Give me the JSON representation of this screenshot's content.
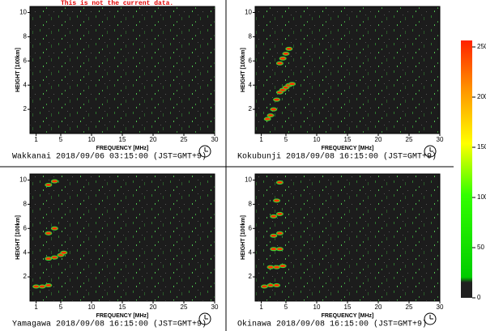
{
  "notice": "This is not the current data.",
  "colorbar": {
    "lim": [
      0,
      250
    ],
    "ticks": [
      0,
      50,
      100,
      150,
      200,
      250
    ]
  },
  "chart_data": [
    {
      "type": "scatter",
      "station": "Wakkanai 2018/09/06 03:15:00 (JST=GMT+9)",
      "x_label": "FREQUENCY [MHz]",
      "y_label": "HEIGHT [100km]",
      "xlim": [
        0,
        30
      ],
      "ylim": [
        0,
        10.5
      ],
      "xticks": [
        1,
        5,
        10,
        15,
        20,
        25,
        30
      ],
      "yticks": [
        2,
        4,
        6,
        8,
        10
      ],
      "series": []
    },
    {
      "type": "scatter",
      "station": "Kokubunji 2018/09/08 16:15:00 (JST=GMT+9)",
      "x_label": "FREQUENCY [MHz]",
      "y_label": "HEIGHT [100km]",
      "xlim": [
        0,
        30
      ],
      "ylim": [
        0,
        10.5
      ],
      "xticks": [
        1,
        5,
        10,
        15,
        20,
        25,
        30
      ],
      "yticks": [
        2,
        4,
        6,
        8,
        10
      ],
      "series": [
        {
          "color": "#ff3300",
          "x": [
            2,
            2.5,
            3,
            3.5,
            4,
            4.5,
            5,
            5.5,
            6,
            4,
            4.5,
            5,
            5.5
          ],
          "values": [
            1.2,
            1.5,
            2,
            2.8,
            3.4,
            3.6,
            3.8,
            4.0,
            4.1,
            5.8,
            6.2,
            6.6,
            7.0
          ]
        }
      ]
    },
    {
      "type": "scatter",
      "station": "Yamagawa 2018/09/08 16:15:00 (JST=GMT+9)",
      "x_label": "FREQUENCY [MHz]",
      "y_label": "HEIGHT [100km]",
      "xlim": [
        0,
        30
      ],
      "ylim": [
        0,
        10.5
      ],
      "xticks": [
        1,
        5,
        10,
        15,
        20,
        25,
        30
      ],
      "yticks": [
        2,
        4,
        6,
        8,
        10
      ],
      "series": [
        {
          "color": "#ff3300",
          "x": [
            1,
            2,
            3,
            3,
            4,
            5,
            5.5,
            3,
            4,
            3,
            4
          ],
          "values": [
            1.2,
            1.2,
            1.3,
            3.5,
            3.6,
            3.8,
            4.0,
            5.6,
            6.0,
            9.6,
            9.9
          ]
        }
      ]
    },
    {
      "type": "scatter",
      "station": "Okinawa 2018/09/08 16:15:00 (JST=GMT+9)",
      "x_label": "FREQUENCY [MHz]",
      "y_label": "HEIGHT [100km]",
      "xlim": [
        0,
        30
      ],
      "ylim": [
        0,
        10.5
      ],
      "xticks": [
        1,
        5,
        10,
        15,
        20,
        25,
        30
      ],
      "yticks": [
        2,
        4,
        6,
        8,
        10
      ],
      "series": [
        {
          "color": "#ff3300",
          "x": [
            1.5,
            2.5,
            3.5,
            2.5,
            3.5,
            4.5,
            3,
            4,
            3,
            4,
            3,
            4,
            3.5,
            4
          ],
          "values": [
            1.2,
            1.3,
            1.3,
            2.8,
            2.8,
            2.9,
            4.3,
            4.3,
            5.4,
            5.6,
            7,
            7.2,
            8.3,
            9.8
          ]
        }
      ]
    }
  ]
}
